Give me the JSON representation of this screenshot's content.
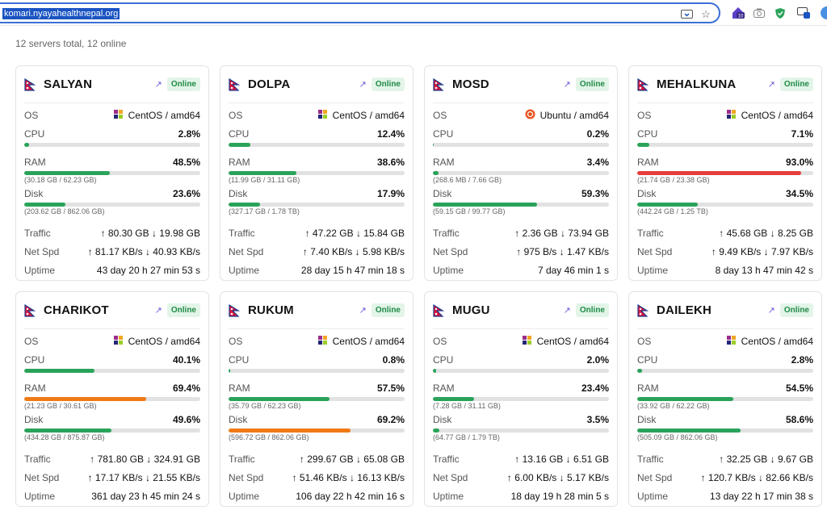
{
  "browser": {
    "url": "komari.nyayahealthnepal.org",
    "ext_badge_count": "10"
  },
  "summary": "12 servers total, 12 online",
  "colors": {
    "green": "#2aa35a",
    "orange": "#f07a14",
    "red": "#e53e3e",
    "track": "#e2e2e2"
  },
  "labels": {
    "os": "OS",
    "cpu": "CPU",
    "ram": "RAM",
    "disk": "Disk",
    "traffic": "Traffic",
    "netspd": "Net Spd",
    "uptime": "Uptime"
  },
  "servers": [
    {
      "name": "SALYAN",
      "status": "Online",
      "os": "CentOS / amd64",
      "os_icon": "centos-icon",
      "cpu": "2.8%",
      "cpu_pct": 2.8,
      "cpu_color": "green",
      "ram": "48.5%",
      "ram_pct": 48.5,
      "ram_color": "green",
      "ram_detail": "(30.18 GB / 62.23 GB)",
      "disk": "23.6%",
      "disk_pct": 23.6,
      "disk_color": "green",
      "disk_detail": "(203.62 GB / 862.06 GB)",
      "traffic": "↑ 80.30 GB ↓ 19.98 GB",
      "netspd": "↑ 81.17 KB/s ↓ 40.93 KB/s",
      "uptime": "43 day 20 h 27 min 53 s"
    },
    {
      "name": "DOLPA",
      "status": "Online",
      "os": "CentOS / amd64",
      "os_icon": "centos-icon",
      "cpu": "12.4%",
      "cpu_pct": 12.4,
      "cpu_color": "green",
      "ram": "38.6%",
      "ram_pct": 38.6,
      "ram_color": "green",
      "ram_detail": "(11.99 GB / 31.11 GB)",
      "disk": "17.9%",
      "disk_pct": 17.9,
      "disk_color": "green",
      "disk_detail": "(327.17 GB / 1.78 TB)",
      "traffic": "↑ 47.22 GB ↓ 15.84 GB",
      "netspd": "↑ 7.40 KB/s ↓ 5.98 KB/s",
      "uptime": "28 day 15 h 47 min 18 s"
    },
    {
      "name": "MOSD",
      "status": "Online",
      "os": "Ubuntu / amd64",
      "os_icon": "ubuntu-icon",
      "cpu": "0.2%",
      "cpu_pct": 0.2,
      "cpu_color": "green",
      "ram": "3.4%",
      "ram_pct": 3.4,
      "ram_color": "green",
      "ram_detail": "(268.6 MB / 7.66 GB)",
      "disk": "59.3%",
      "disk_pct": 59.3,
      "disk_color": "green",
      "disk_detail": "(59.15 GB / 99.77 GB)",
      "traffic": "↑ 2.36 GB ↓ 73.94 GB",
      "netspd": "↑ 975 B/s ↓ 1.47 KB/s",
      "uptime": "7 day 46 min 1 s"
    },
    {
      "name": "MEHALKUNA",
      "status": "Online",
      "os": "CentOS / amd64",
      "os_icon": "centos-icon",
      "cpu": "7.1%",
      "cpu_pct": 7.1,
      "cpu_color": "green",
      "ram": "93.0%",
      "ram_pct": 93.0,
      "ram_color": "red",
      "ram_detail": "(21.74 GB / 23.38 GB)",
      "disk": "34.5%",
      "disk_pct": 34.5,
      "disk_color": "green",
      "disk_detail": "(442.24 GB / 1.25 TB)",
      "traffic": "↑ 45.68 GB ↓ 8.25 GB",
      "netspd": "↑ 9.49 KB/s ↓ 7.97 KB/s",
      "uptime": "8 day 13 h 47 min 42 s"
    },
    {
      "name": "CHARIKOT",
      "status": "Online",
      "os": "CentOS / amd64",
      "os_icon": "centos-icon",
      "cpu": "40.1%",
      "cpu_pct": 40.1,
      "cpu_color": "green",
      "ram": "69.4%",
      "ram_pct": 69.4,
      "ram_color": "orange",
      "ram_detail": "(21.23 GB / 30.61 GB)",
      "disk": "49.6%",
      "disk_pct": 49.6,
      "disk_color": "green",
      "disk_detail": "(434.28 GB / 875.87 GB)",
      "traffic": "↑ 781.80 GB ↓ 324.91 GB",
      "netspd": "↑ 17.17 KB/s ↓ 21.55 KB/s",
      "uptime": "361 day 23 h 45 min 24 s"
    },
    {
      "name": "RUKUM",
      "status": "Online",
      "os": "CentOS / amd64",
      "os_icon": "centos-icon",
      "cpu": "0.8%",
      "cpu_pct": 0.8,
      "cpu_color": "green",
      "ram": "57.5%",
      "ram_pct": 57.5,
      "ram_color": "green",
      "ram_detail": "(35.79 GB / 62.23 GB)",
      "disk": "69.2%",
      "disk_pct": 69.2,
      "disk_color": "orange",
      "disk_detail": "(596.72 GB / 862.06 GB)",
      "traffic": "↑ 299.67 GB ↓ 65.08 GB",
      "netspd": "↑ 51.46 KB/s ↓ 16.13 KB/s",
      "uptime": "106 day 22 h 42 min 16 s"
    },
    {
      "name": "MUGU",
      "status": "Online",
      "os": "CentOS / amd64",
      "os_icon": "centos-icon",
      "cpu": "2.0%",
      "cpu_pct": 2.0,
      "cpu_color": "green",
      "ram": "23.4%",
      "ram_pct": 23.4,
      "ram_color": "green",
      "ram_detail": "(7.28 GB / 31.11 GB)",
      "disk": "3.5%",
      "disk_pct": 3.5,
      "disk_color": "green",
      "disk_detail": "(64.77 GB / 1.79 TB)",
      "traffic": "↑ 13.16 GB ↓ 6.51 GB",
      "netspd": "↑ 6.00 KB/s ↓ 5.17 KB/s",
      "uptime": "18 day 19 h 28 min 5 s"
    },
    {
      "name": "DAILEKH",
      "status": "Online",
      "os": "CentOS / amd64",
      "os_icon": "centos-icon",
      "cpu": "2.8%",
      "cpu_pct": 2.8,
      "cpu_color": "green",
      "ram": "54.5%",
      "ram_pct": 54.5,
      "ram_color": "green",
      "ram_detail": "(33.92 GB / 62.22 GB)",
      "disk": "58.6%",
      "disk_pct": 58.6,
      "disk_color": "green",
      "disk_detail": "(505.09 GB / 862.06 GB)",
      "traffic": "↑ 32.25 GB ↓ 9.67 GB",
      "netspd": "↑ 120.7 KB/s ↓ 82.66 KB/s",
      "uptime": "13 day 22 h 17 min 38 s"
    }
  ]
}
